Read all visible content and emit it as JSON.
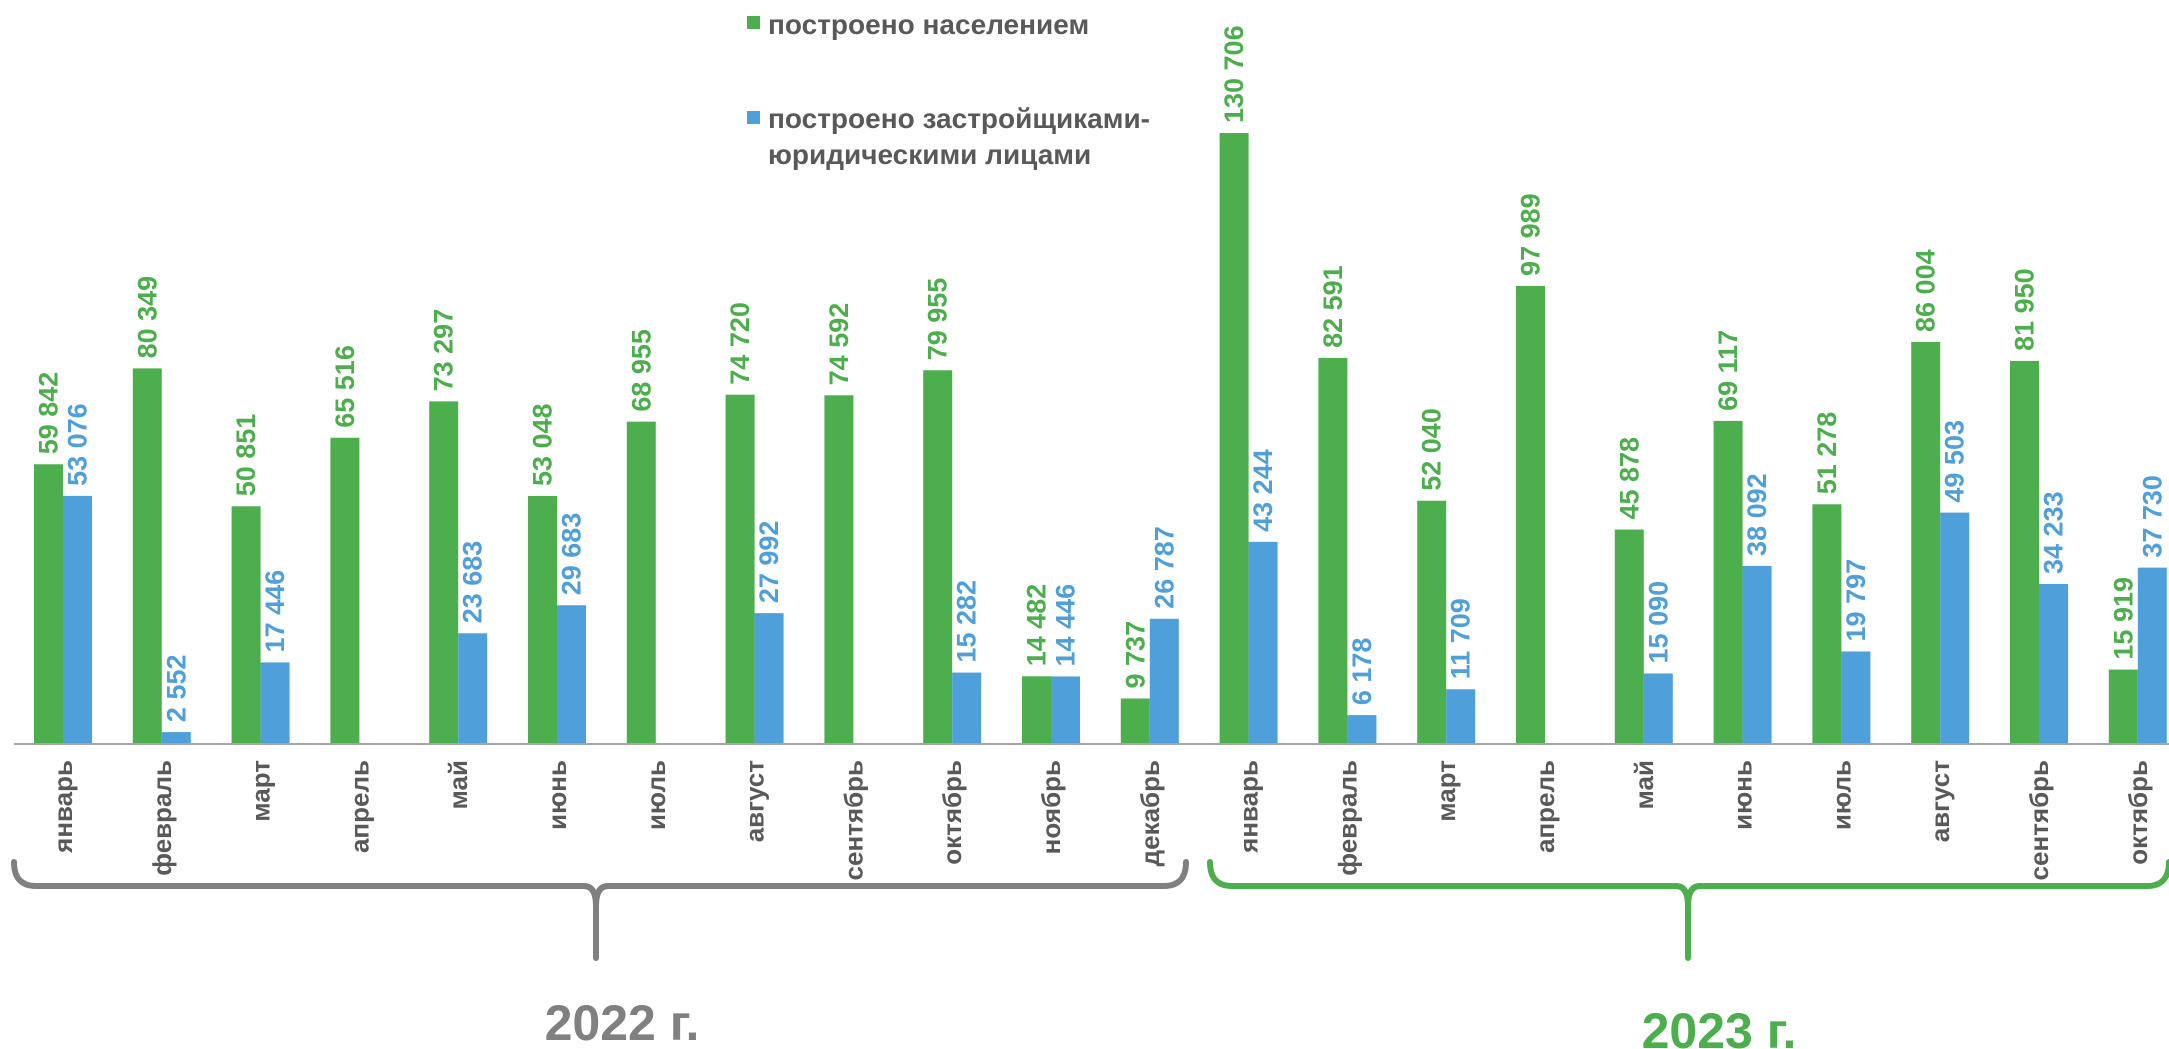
{
  "chart_data": {
    "type": "bar",
    "categories": [
      "январь",
      "февраль",
      "март",
      "апрель",
      "май",
      "июнь",
      "июль",
      "август",
      "сентябрь",
      "октябрь",
      "ноябрь",
      "декабрь",
      "январь",
      "февраль",
      "март",
      "апрель",
      "май",
      "июнь",
      "июль",
      "август",
      "сентябрь",
      "октябрь"
    ],
    "series": [
      {
        "name": "построено населением",
        "color": "#4cae4c",
        "values": [
          59842,
          80349,
          50851,
          65516,
          73297,
          53048,
          68955,
          74720,
          74592,
          79955,
          14482,
          9737,
          130706,
          82591,
          52040,
          97989,
          45878,
          69117,
          51278,
          86004,
          81950,
          15919
        ],
        "labels": [
          "59 842",
          "80 349",
          "50 851",
          "65 516",
          "73 297",
          "53 048",
          "68 955",
          "74 720",
          "74 592",
          "79 955",
          "14 482",
          "9 737",
          "130 706",
          "82 591",
          "52 040",
          "97 989",
          "45 878",
          "69 117",
          "51 278",
          "86 004",
          "81 950",
          "15 919"
        ]
      },
      {
        "name": "построено застройщиками-юридическими лицами",
        "name_lines": [
          "построено застройщиками-",
          "юридическими лицами"
        ],
        "color": "#4f9fda",
        "values": [
          53076,
          2552,
          17446,
          null,
          23683,
          29683,
          null,
          27992,
          null,
          15282,
          14446,
          26787,
          43244,
          6178,
          11709,
          null,
          15090,
          38092,
          19797,
          49503,
          34233,
          37730
        ],
        "labels": [
          "53 076",
          "2 552",
          "17 446",
          "",
          "23 683",
          "29 683",
          "",
          "27 992",
          "",
          "15 282",
          "14 446",
          "26 787",
          "43 244",
          "6 178",
          "11 709",
          "",
          "15 090",
          "38 092",
          "19 797",
          "49 503",
          "34 233",
          "37 730"
        ]
      }
    ],
    "groups": [
      {
        "label": "2022 г.",
        "from": 0,
        "to": 11,
        "color": "#808080"
      },
      {
        "label": "2023 г.",
        "from": 12,
        "to": 21,
        "color": "#4cae4c"
      }
    ],
    "ylim": [
      0,
      135000
    ],
    "grid": false,
    "legend": "top-center",
    "title": "",
    "xlabel": "",
    "ylabel": ""
  }
}
